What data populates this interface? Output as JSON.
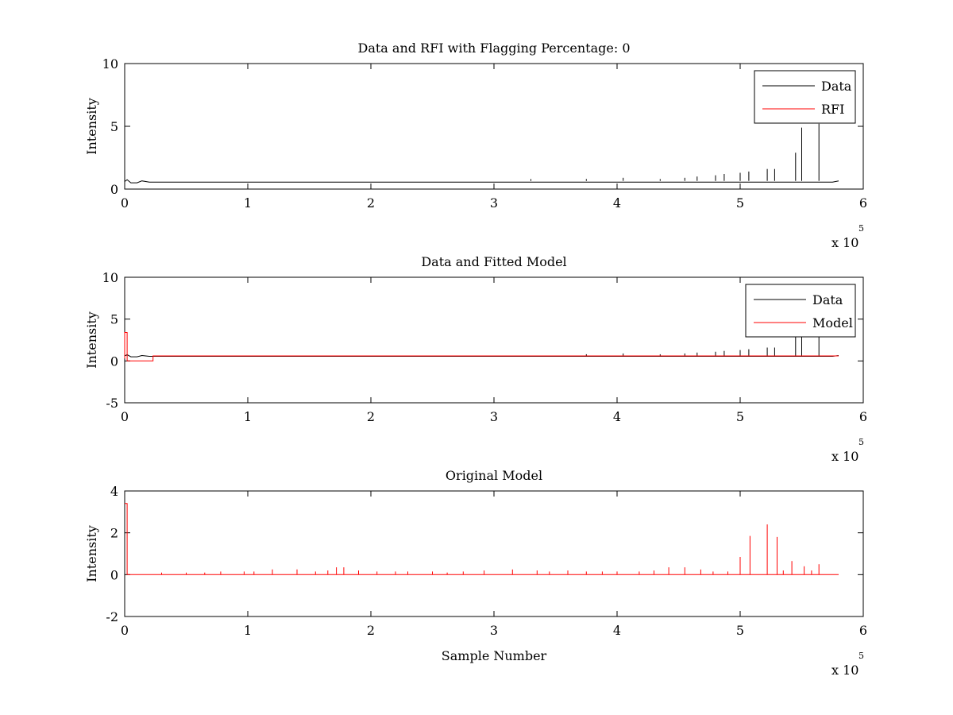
{
  "figure": {
    "background": "#ffffff"
  },
  "chart_data": [
    {
      "type": "line",
      "title": "Data and RFI with Flagging Percentage: 0",
      "xlabel": "",
      "ylabel": "Intensity",
      "xlim": [
        0,
        6
      ],
      "ylim": [
        0,
        10
      ],
      "x_ticks": [
        "0",
        "1",
        "2",
        "3",
        "4",
        "5",
        "6"
      ],
      "y_ticks": [
        "0",
        "5",
        "10"
      ],
      "x_exponent": {
        "base": "x 10",
        "power": "5"
      },
      "legend": {
        "position": "top-right",
        "entries": [
          "Data",
          "RFI"
        ]
      },
      "series": [
        {
          "name": "Data",
          "color": "#000000",
          "baseline": [
            [
              0,
              0.6
            ],
            [
              0.02,
              0.75
            ],
            [
              0.05,
              0.5
            ],
            [
              0.1,
              0.5
            ],
            [
              0.14,
              0.65
            ],
            [
              0.2,
              0.55
            ],
            [
              5.75,
              0.55
            ],
            [
              5.8,
              0.65
            ]
          ],
          "spikes": [
            [
              3.3,
              0.8
            ],
            [
              3.75,
              0.8
            ],
            [
              4.05,
              0.9
            ],
            [
              4.35,
              0.8
            ],
            [
              4.55,
              0.9
            ],
            [
              4.65,
              1.0
            ],
            [
              4.8,
              1.1
            ],
            [
              4.87,
              1.2
            ],
            [
              5.0,
              1.3
            ],
            [
              5.07,
              1.4
            ],
            [
              5.22,
              1.6
            ],
            [
              5.28,
              1.6
            ],
            [
              5.45,
              2.9
            ],
            [
              5.5,
              4.9
            ],
            [
              5.64,
              5.2
            ]
          ]
        },
        {
          "name": "RFI",
          "color": "#ff0000",
          "baseline": [],
          "spikes": []
        }
      ]
    },
    {
      "type": "line",
      "title": "Data and Fitted Model",
      "xlabel": "",
      "ylabel": "Intensity",
      "xlim": [
        0,
        6
      ],
      "ylim": [
        -5,
        10
      ],
      "x_ticks": [
        "0",
        "1",
        "2",
        "3",
        "4",
        "5",
        "6"
      ],
      "y_ticks": [
        "-5",
        "0",
        "5",
        "10"
      ],
      "x_exponent": {
        "base": "x 10",
        "power": "5"
      },
      "legend": {
        "position": "top-right",
        "entries": [
          "Data",
          "Model"
        ]
      },
      "series": [
        {
          "name": "Data",
          "color": "#000000",
          "baseline": [
            [
              0,
              0.6
            ],
            [
              0.02,
              0.75
            ],
            [
              0.05,
              0.5
            ],
            [
              0.1,
              0.5
            ],
            [
              0.14,
              0.65
            ],
            [
              0.2,
              0.55
            ],
            [
              5.75,
              0.55
            ],
            [
              5.8,
              0.65
            ]
          ],
          "spikes": [
            [
              3.75,
              0.8
            ],
            [
              4.05,
              0.9
            ],
            [
              4.35,
              0.8
            ],
            [
              4.55,
              0.9
            ],
            [
              4.65,
              1.0
            ],
            [
              4.8,
              1.1
            ],
            [
              4.87,
              1.2
            ],
            [
              5.0,
              1.3
            ],
            [
              5.07,
              1.4
            ],
            [
              5.22,
              1.6
            ],
            [
              5.28,
              1.6
            ],
            [
              5.45,
              2.9
            ],
            [
              5.5,
              4.9
            ],
            [
              5.64,
              5.2
            ]
          ]
        },
        {
          "name": "Model",
          "color": "#ff0000",
          "baseline": [
            [
              0,
              0.3
            ],
            [
              0,
              3.4
            ],
            [
              0.02,
              3.4
            ],
            [
              0.02,
              0
            ],
            [
              0.23,
              0
            ],
            [
              0.23,
              0.6
            ],
            [
              5.8,
              0.6
            ]
          ],
          "spikes": []
        }
      ]
    },
    {
      "type": "line",
      "title": "Original Model",
      "xlabel": "Sample Number",
      "ylabel": "Intensity",
      "xlim": [
        0,
        6
      ],
      "ylim": [
        -2,
        4
      ],
      "x_ticks": [
        "0",
        "1",
        "2",
        "3",
        "4",
        "5",
        "6"
      ],
      "y_ticks": [
        "-2",
        "0",
        "2",
        "4"
      ],
      "x_exponent": {
        "base": "x 10",
        "power": "5"
      },
      "legend": null,
      "series": [
        {
          "name": "",
          "color": "#ff0000",
          "baseline": [
            [
              0,
              3.4
            ],
            [
              0.02,
              3.4
            ],
            [
              0.02,
              0
            ],
            [
              5.8,
              0
            ]
          ],
          "spikes": [
            [
              0.3,
              0.1
            ],
            [
              0.5,
              0.1
            ],
            [
              0.65,
              0.1
            ],
            [
              0.78,
              0.15
            ],
            [
              0.97,
              0.15
            ],
            [
              1.05,
              0.15
            ],
            [
              1.2,
              0.25
            ],
            [
              1.4,
              0.25
            ],
            [
              1.55,
              0.15
            ],
            [
              1.65,
              0.2
            ],
            [
              1.72,
              0.35
            ],
            [
              1.78,
              0.35
            ],
            [
              1.9,
              0.2
            ],
            [
              2.05,
              0.15
            ],
            [
              2.2,
              0.15
            ],
            [
              2.3,
              0.15
            ],
            [
              2.5,
              0.15
            ],
            [
              2.62,
              0.1
            ],
            [
              2.75,
              0.15
            ],
            [
              2.92,
              0.2
            ],
            [
              3.15,
              0.25
            ],
            [
              3.35,
              0.2
            ],
            [
              3.45,
              0.15
            ],
            [
              3.6,
              0.2
            ],
            [
              3.75,
              0.15
            ],
            [
              3.88,
              0.15
            ],
            [
              4.0,
              0.15
            ],
            [
              4.18,
              0.15
            ],
            [
              4.3,
              0.2
            ],
            [
              4.42,
              0.35
            ],
            [
              4.55,
              0.35
            ],
            [
              4.68,
              0.25
            ],
            [
              4.78,
              0.15
            ],
            [
              4.9,
              0.15
            ],
            [
              5.0,
              0.85
            ],
            [
              5.08,
              1.85
            ],
            [
              5.22,
              2.4
            ],
            [
              5.3,
              1.8
            ],
            [
              5.35,
              0.2
            ],
            [
              5.42,
              0.65
            ],
            [
              5.52,
              0.4
            ],
            [
              5.58,
              0.2
            ],
            [
              5.64,
              0.5
            ]
          ]
        }
      ]
    }
  ]
}
